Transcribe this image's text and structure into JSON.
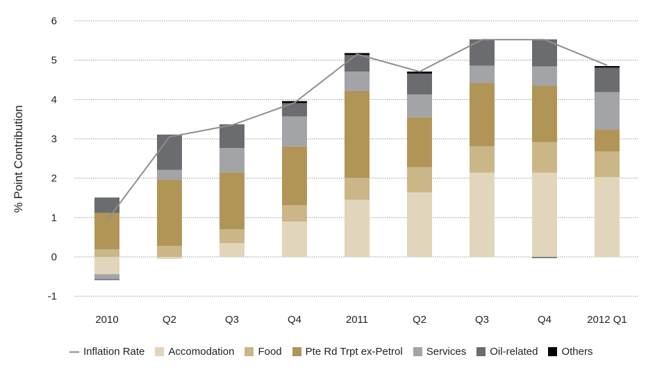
{
  "chart_data": {
    "type": "bar",
    "stacked": true,
    "title": "",
    "xlabel": "",
    "ylabel": "% Point Contribution",
    "ylim": [
      -1,
      6
    ],
    "yticks": [
      6,
      5,
      4,
      3,
      2,
      1,
      0,
      -1
    ],
    "grid": true,
    "legend_position": "bottom",
    "categories": [
      "2010",
      "Q2",
      "Q3",
      "Q4",
      "2011",
      "Q2",
      "Q3",
      "Q4",
      "2012 Q1"
    ],
    "series": [
      {
        "name": "Accomodation",
        "color": "#e1d5bb",
        "values": [
          -0.44,
          -0.05,
          0.35,
          0.9,
          1.45,
          1.64,
          2.14,
          2.14,
          2.03
        ]
      },
      {
        "name": "Food",
        "color": "#cbb687",
        "values": [
          0.19,
          0.28,
          0.35,
          0.41,
          0.56,
          0.64,
          0.67,
          0.78,
          0.65
        ]
      },
      {
        "name": "Pte Rd Trpt ex-Petrol",
        "color": "#b19557",
        "values": [
          0.93,
          1.68,
          1.45,
          1.5,
          2.21,
          1.27,
          1.61,
          1.43,
          0.56
        ]
      },
      {
        "name": "Services",
        "color": "#a3a4a8",
        "values": [
          -0.12,
          0.25,
          0.62,
          0.76,
          0.49,
          0.58,
          0.44,
          0.49,
          0.95
        ]
      },
      {
        "name": "Oil-related",
        "color": "#6b6c70",
        "values": [
          0.39,
          0.9,
          0.6,
          0.34,
          0.42,
          0.53,
          0.67,
          0.69,
          0.62
        ]
      },
      {
        "name": "Oil-related (negative)",
        "color": "#6b6c70",
        "legend": false,
        "values": [
          -0.03,
          0,
          0,
          0,
          0,
          0,
          0,
          -0.03,
          0
        ]
      },
      {
        "name": "Others",
        "color": "#000000",
        "values": [
          0,
          0,
          0,
          0.05,
          0.05,
          0.05,
          0,
          0,
          0.04
        ]
      }
    ],
    "line_series": {
      "name": "Inflation Rate",
      "color": "#8e8e8e",
      "values": [
        0.93,
        3.05,
        3.35,
        3.92,
        5.15,
        4.71,
        5.52,
        5.52,
        4.87
      ]
    },
    "legend": [
      {
        "label": "Inflation Rate",
        "kind": "line",
        "color": "#8e8e8e"
      },
      {
        "label": "Accomodation",
        "kind": "box",
        "color": "#e1d5bb"
      },
      {
        "label": "Food",
        "kind": "box",
        "color": "#cbb687"
      },
      {
        "label": "Pte Rd Trpt ex-Petrol",
        "kind": "box",
        "color": "#b19557"
      },
      {
        "label": "Services",
        "kind": "box",
        "color": "#a3a4a8"
      },
      {
        "label": "Oil-related",
        "kind": "box",
        "color": "#6b6c70"
      },
      {
        "label": "Others",
        "kind": "box",
        "color": "#000000"
      }
    ]
  }
}
